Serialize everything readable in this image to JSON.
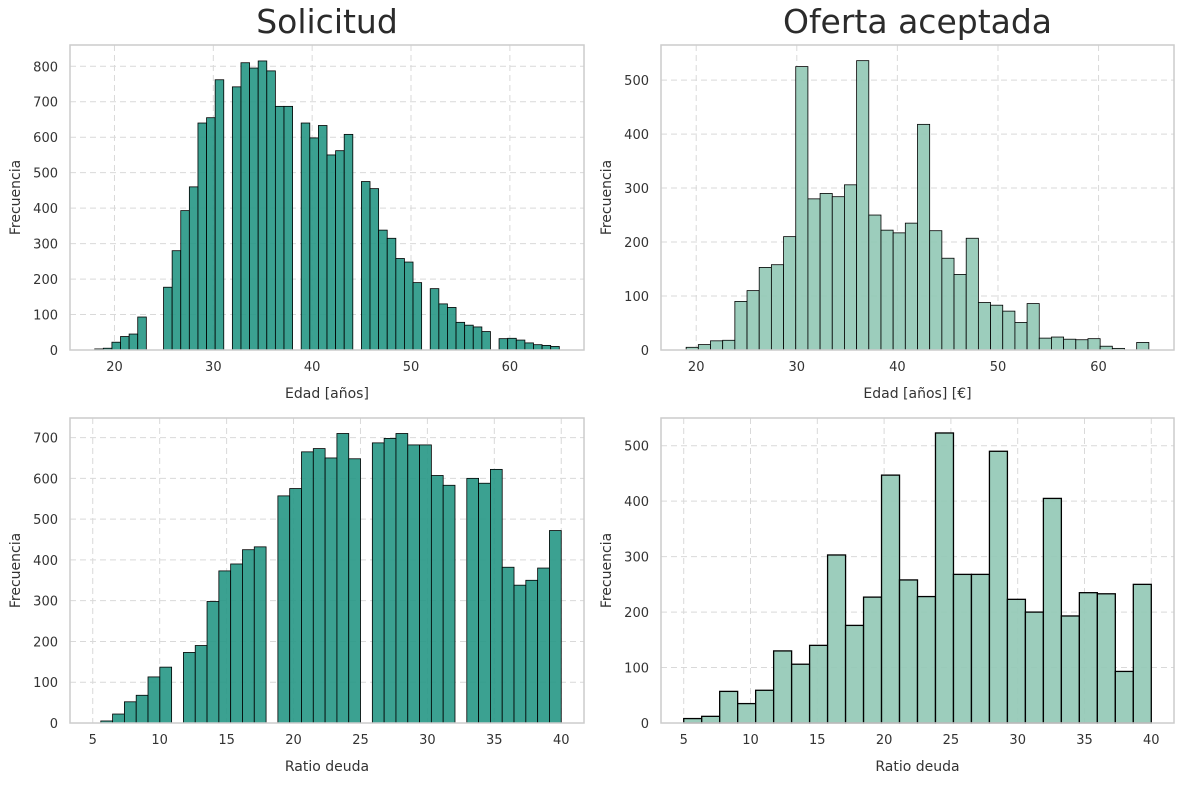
{
  "figure": {
    "col_titles": [
      "Solicitud",
      "Oferta aceptada"
    ]
  },
  "colors": {
    "solicitud_fill": "#2a9988",
    "oferta_fill": "#94c9b6",
    "edge": "#000000",
    "grid": "#d9d9d9",
    "frame": "#cccccc",
    "text": "#333333"
  },
  "chart_data": [
    {
      "id": "age-solicitud",
      "type": "histogram",
      "title": "Solicitud",
      "xlabel": "Edad [años]",
      "ylabel": "Frecuencia",
      "xlim": [
        15.5,
        67.5
      ],
      "ylim": [
        0,
        860
      ],
      "xticks": [
        20,
        30,
        40,
        50,
        60
      ],
      "yticks": [
        0,
        100,
        200,
        300,
        400,
        500,
        600,
        700,
        800
      ],
      "grid": true,
      "bins": {
        "x_start": 18,
        "x_end": 65,
        "counts": [
          3,
          5,
          22,
          38,
          45,
          93,
          0,
          0,
          177,
          280,
          393,
          460,
          640,
          655,
          762,
          0,
          742,
          810,
          795,
          815,
          787,
          687,
          687,
          0,
          640,
          598,
          633,
          550,
          562,
          608,
          0,
          475,
          455,
          338,
          315,
          258,
          248,
          190,
          0,
          173,
          130,
          120,
          78,
          70,
          65,
          52,
          0,
          32,
          33,
          28,
          20,
          15,
          13,
          10
        ]
      }
    },
    {
      "id": "age-oferta",
      "type": "histogram",
      "xlabel": "Edad [años] [€]",
      "ylabel": "Frecuencia",
      "xlim": [
        16.5,
        67.5
      ],
      "ylim": [
        0,
        565
      ],
      "xticks": [
        20,
        30,
        40,
        50,
        60
      ],
      "yticks": [
        0,
        100,
        200,
        300,
        400,
        500
      ],
      "grid": true,
      "bins": {
        "x_start": 19,
        "x_end": 65,
        "counts": [
          5,
          10,
          17,
          18,
          90,
          110,
          153,
          158,
          210,
          525,
          280,
          290,
          284,
          306,
          536,
          250,
          222,
          217,
          235,
          418,
          221,
          170,
          140,
          207,
          88,
          83,
          72,
          51,
          86,
          22,
          24,
          20,
          19,
          21,
          7,
          3,
          0,
          14
        ]
      }
    },
    {
      "id": "debt-solicitud",
      "type": "histogram",
      "xlabel": "Ratio deuda",
      "ylabel": "Frecuencia",
      "xlim": [
        3.3,
        41.7
      ],
      "ylim": [
        0,
        748
      ],
      "xticks": [
        5,
        10,
        15,
        20,
        25,
        30,
        35,
        40
      ],
      "yticks": [
        0,
        100,
        200,
        300,
        400,
        500,
        600,
        700
      ],
      "grid": true,
      "bins": {
        "x_start": 5.6,
        "x_end": 40,
        "counts": [
          5,
          22,
          52,
          68,
          113,
          137,
          0,
          173,
          190,
          298,
          373,
          390,
          425,
          432,
          0,
          557,
          575,
          665,
          673,
          650,
          710,
          648,
          0,
          687,
          698,
          710,
          682,
          682,
          607,
          583,
          0,
          600,
          588,
          622,
          382,
          338,
          350,
          380,
          472
        ]
      }
    },
    {
      "id": "debt-oferta",
      "type": "histogram",
      "xlabel": "Ratio deuda",
      "ylabel": "Frecuencia",
      "xlim": [
        3.3,
        41.7
      ],
      "ylim": [
        0,
        550
      ],
      "xticks": [
        5,
        10,
        15,
        20,
        25,
        30,
        35,
        40
      ],
      "yticks": [
        0,
        100,
        200,
        300,
        400,
        500
      ],
      "grid": true,
      "bins": {
        "x_start": 5,
        "x_end": 40,
        "counts": [
          8,
          12,
          57,
          35,
          59,
          130,
          106,
          140,
          303,
          176,
          227,
          447,
          258,
          228,
          523,
          268,
          268,
          490,
          223,
          200,
          405,
          193,
          235,
          233,
          93,
          250
        ]
      }
    }
  ]
}
